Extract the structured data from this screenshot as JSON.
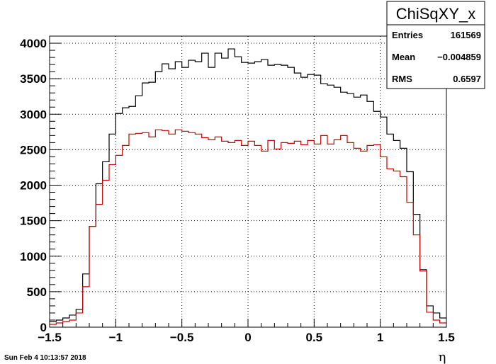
{
  "chart_data": {
    "type": "histogram",
    "title": "",
    "xlabel": "η",
    "ylabel": "",
    "xlim": [
      -1.5,
      1.5
    ],
    "ylim": [
      0,
      4100
    ],
    "grid": true,
    "x_ticks": [
      -1.5,
      -1,
      -0.5,
      0,
      0.5,
      1,
      1.5
    ],
    "x_tick_labels": [
      "−1.5",
      "−1",
      "−0.5",
      "0",
      "0.5",
      "1",
      "1.5"
    ],
    "y_ticks": [
      0,
      500,
      1000,
      1500,
      2000,
      2500,
      3000,
      3500,
      4000
    ],
    "y_tick_labels": [
      "0",
      "500",
      "1000",
      "1500",
      "2000",
      "2500",
      "3000",
      "3500",
      "4000"
    ],
    "bin_edges_range": [
      -1.5,
      1.5
    ],
    "bin_count": 60,
    "series": [
      {
        "color": "#000000",
        "values": [
          80,
          100,
          130,
          170,
          250,
          750,
          1420,
          2020,
          2330,
          2720,
          3010,
          3090,
          3110,
          3260,
          3440,
          3450,
          3600,
          3710,
          3640,
          3740,
          3660,
          3760,
          3740,
          3860,
          3660,
          3860,
          3790,
          3920,
          3810,
          3730,
          3720,
          3740,
          3770,
          3690,
          3700,
          3690,
          3660,
          3580,
          3520,
          3560,
          3550,
          3430,
          3410,
          3380,
          3310,
          3290,
          3240,
          3270,
          3180,
          3040,
          2960,
          2720,
          2630,
          2520,
          2190,
          1590,
          810,
          300,
          200,
          130
        ]
      },
      {
        "color": "#cc0000",
        "values": [
          40,
          60,
          80,
          100,
          200,
          570,
          1420,
          1730,
          2070,
          2290,
          2420,
          2560,
          2720,
          2730,
          2740,
          2680,
          2780,
          2770,
          2720,
          2780,
          2760,
          2740,
          2720,
          2670,
          2640,
          2680,
          2620,
          2600,
          2630,
          2560,
          2620,
          2560,
          2480,
          2630,
          2510,
          2600,
          2590,
          2620,
          2570,
          2630,
          2580,
          2700,
          2580,
          2640,
          2700,
          2600,
          2520,
          2480,
          2560,
          2570,
          2400,
          2230,
          2200,
          2120,
          1760,
          1300,
          790,
          210,
          100,
          60
        ]
      }
    ]
  },
  "stats_box": {
    "title": "ChiSqXY_x",
    "rows": [
      {
        "label": "Entries",
        "value": "161569"
      },
      {
        "label": "Mean",
        "value": "−0.004859"
      },
      {
        "label": "RMS",
        "value": "0.6597"
      }
    ]
  },
  "datestamp": "Sun Feb  4 10:13:57 2018"
}
